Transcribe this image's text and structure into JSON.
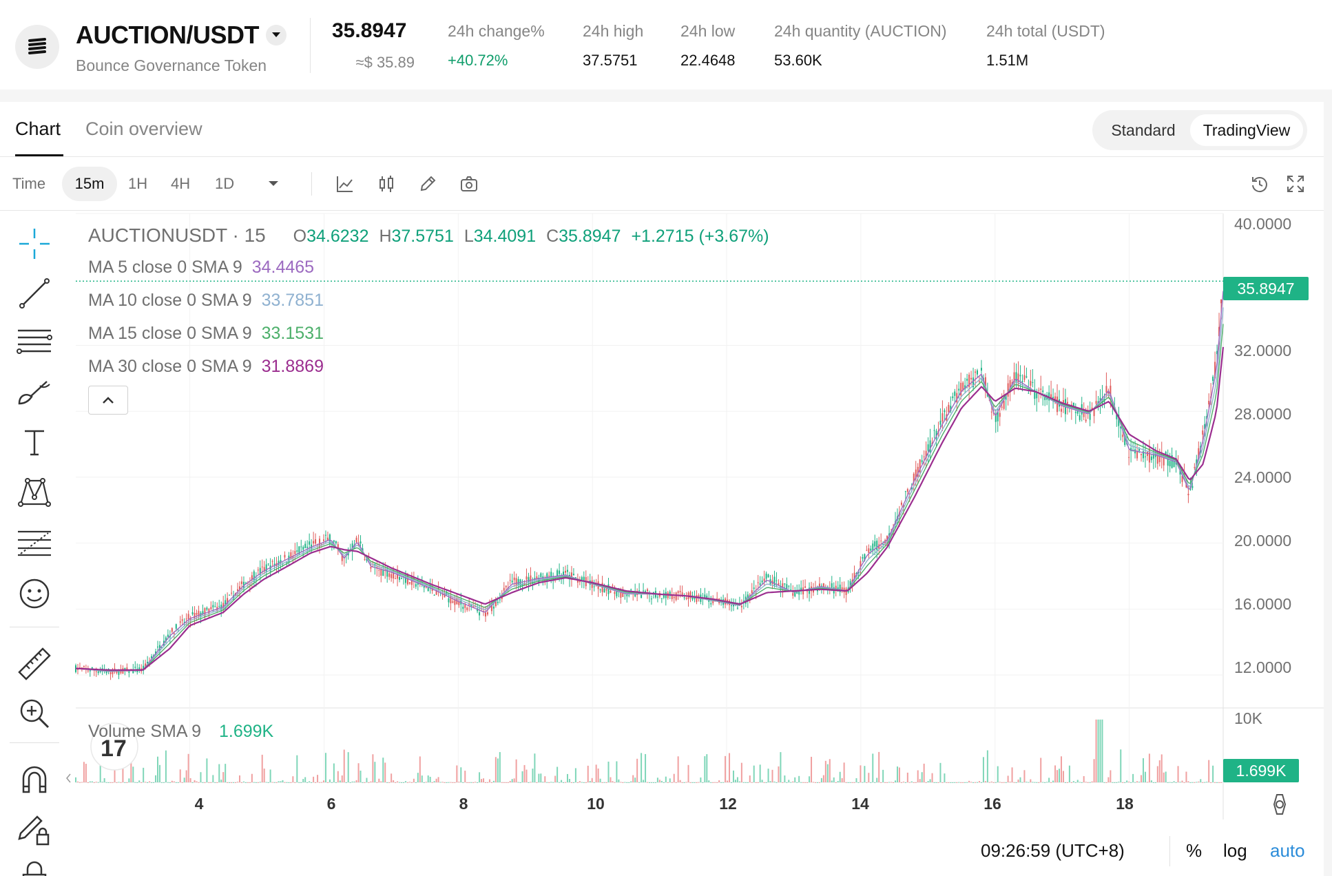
{
  "ticker": {
    "pair": "AUCTION/USDT",
    "name": "Bounce Governance Token",
    "last_price": "35.8947",
    "last_usd": "≈$ 35.89",
    "stats": [
      {
        "label": "24h change%",
        "value": "+40.72%"
      },
      {
        "label": "24h high",
        "value": "37.5751"
      },
      {
        "label": "24h low",
        "value": "22.4648"
      },
      {
        "label": "24h quantity (AUCTION)",
        "value": "53.60K"
      },
      {
        "label": "24h total (USDT)",
        "value": "1.51M"
      }
    ],
    "up_color": "#0f9d6b"
  },
  "tabs": {
    "chart": "Chart",
    "overview": "Coin overview"
  },
  "view_toggle": {
    "standard": "Standard",
    "tradingview": "TradingView",
    "selected": "TradingView"
  },
  "toolbar": {
    "time_label": "Time",
    "intervals": [
      "15m",
      "1H",
      "4H",
      "1D"
    ],
    "selected_interval": "15m",
    "icons": [
      "line-chart-icon",
      "candle-chart-icon",
      "pencil-icon",
      "camera-icon",
      "history-icon",
      "fullscreen-icon"
    ]
  },
  "left_tools": [
    "crosshair-icon",
    "trend-line-icon",
    "parallel-lines-icon",
    "brush-icon",
    "text-icon",
    "pattern-icon",
    "fib-levels-icon",
    "emoji-icon",
    "ruler-icon",
    "zoom-in-icon",
    "magnet-icon",
    "lock-pencil-icon",
    "lock-icon"
  ],
  "legend": {
    "symbol": "AUCTIONUSDT · 15",
    "o_label": "O",
    "o": "34.6232",
    "h_label": "H",
    "h": "37.5751",
    "l_label": "L",
    "l": "34.4091",
    "c_label": "C",
    "c": "35.8947",
    "change": "+1.2715 (+3.67%)",
    "ma": [
      {
        "label": "MA 5 close 0 SMA 9",
        "value": "34.4465",
        "color": "#9c6ac0"
      },
      {
        "label": "MA 10 close 0 SMA 9",
        "value": "33.7851",
        "color": "#8fb1d0"
      },
      {
        "label": "MA 15 close 0 SMA 9",
        "value": "33.1531",
        "color": "#4caf6a"
      },
      {
        "label": "MA 30 close 0 SMA 9",
        "value": "31.8869",
        "color": "#9b2d8f"
      }
    ]
  },
  "volume": {
    "label": "Volume SMA 9",
    "value": "1.699K",
    "tag": "1.699K",
    "axis_top": "10K"
  },
  "price_tag": "35.8947",
  "footer": {
    "time": "09:26:59 (UTC+8)",
    "percent": "%",
    "log": "log",
    "auto": "auto"
  },
  "chart_data": {
    "type": "line",
    "ylim": [
      10,
      40
    ],
    "y_ticks": [
      "40.0000",
      "32.0000",
      "28.0000",
      "24.0000",
      "20.0000",
      "16.0000",
      "12.0000"
    ],
    "x_ticks": [
      "4",
      "6",
      "8",
      "10",
      "12",
      "14",
      "16",
      "18"
    ],
    "x": [
      2.3,
      2.8,
      3.3,
      3.7,
      4.0,
      4.5,
      4.8,
      5.1,
      5.5,
      5.8,
      6.1,
      6.3,
      6.5,
      6.7,
      7.0,
      7.3,
      7.6,
      8.0,
      8.4,
      8.8,
      9.2,
      9.6,
      10.0,
      10.5,
      11.0,
      11.4,
      11.8,
      12.2,
      12.6,
      13.0,
      13.4,
      13.8,
      14.1,
      14.4,
      14.8,
      15.2,
      15.5,
      15.8,
      16.0,
      16.3,
      16.6,
      17.0,
      17.4,
      17.7,
      18.0,
      18.4,
      18.7,
      18.9,
      19.1,
      19.3,
      19.4
    ],
    "series": [
      {
        "name": "Price",
        "values": [
          12.4,
          12.2,
          12.3,
          14.5,
          15.5,
          16.2,
          17.5,
          18.4,
          19.2,
          19.8,
          20.3,
          19.0,
          20.2,
          18.5,
          18.2,
          17.7,
          17.2,
          16.4,
          15.7,
          17.6,
          17.9,
          18.1,
          17.5,
          16.9,
          16.9,
          16.8,
          16.5,
          16.2,
          17.9,
          17.0,
          17.4,
          17.1,
          19.5,
          20.3,
          24.0,
          27.3,
          29.4,
          30.4,
          27.5,
          30.1,
          29.2,
          28.3,
          27.8,
          29.4,
          25.5,
          25.3,
          24.9,
          23.0,
          26.5,
          31.0,
          35.9
        ]
      },
      {
        "name": "MA 30",
        "values": [
          12.4,
          12.3,
          12.3,
          13.6,
          15.0,
          15.8,
          16.9,
          17.8,
          18.7,
          19.4,
          19.8,
          19.6,
          19.5,
          19.1,
          18.5,
          18.0,
          17.5,
          16.9,
          16.3,
          17.0,
          17.6,
          17.9,
          17.6,
          17.1,
          16.9,
          16.8,
          16.6,
          16.3,
          17.0,
          17.1,
          17.2,
          17.1,
          18.2,
          19.8,
          22.8,
          26.0,
          28.2,
          29.5,
          28.6,
          29.4,
          29.2,
          28.5,
          28.0,
          28.6,
          26.6,
          25.6,
          25.1,
          23.8,
          24.8,
          28.0,
          31.9
        ]
      }
    ]
  }
}
